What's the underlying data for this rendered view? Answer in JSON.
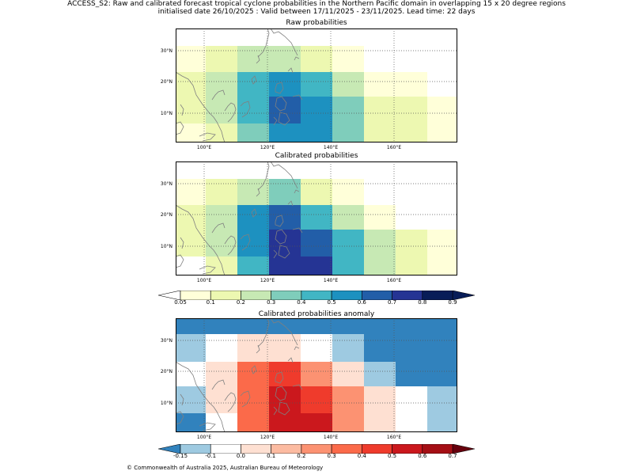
{
  "title": {
    "line1": "ACCESS_S2: Raw and calibrated forecast tropical cyclone probabilities in the Northern Pacific domain in overlapping 15 x 20 degree regions",
    "line2": "initialised date 26/10/2025 :  Valid between 17/11/2025 - 23/11/2025. Lead time: 22 days"
  },
  "panels": {
    "raw": {
      "title": "Raw probabilities"
    },
    "calibrated": {
      "title": "Calibrated probabilities"
    },
    "anomaly": {
      "title": "Calibrated probabilities anomaly"
    }
  },
  "axes": {
    "lon_ticks": [
      "100°E",
      "120°E",
      "140°E",
      "160°E"
    ],
    "lat_ticks": [
      "30°N",
      "20°N",
      "10°N"
    ]
  },
  "colorbars": {
    "probability": {
      "ticks": [
        "0.05",
        "0.1",
        "0.2",
        "0.3",
        "0.4",
        "0.5",
        "0.6",
        "0.7",
        "0.8",
        "0.9"
      ],
      "colors": [
        "#ffffd9",
        "#edf8b1",
        "#c7e9b4",
        "#7fcdbb",
        "#41b6c4",
        "#1d91c0",
        "#225ea8",
        "#253494",
        "#081d58"
      ],
      "under_color": "#ffffff",
      "over_color": "#081d58"
    },
    "anomaly": {
      "ticks": [
        "-0.15",
        "-0.1",
        "0.0",
        "0.1",
        "0.2",
        "0.3",
        "0.4",
        "0.5",
        "0.6",
        "0.7"
      ],
      "colors": [
        "#9ecae1",
        "#ffffff",
        "#fee0d2",
        "#fcbba1",
        "#fc9272",
        "#fb6a4a",
        "#ef3b2c",
        "#cb181d",
        "#a50f15"
      ],
      "under_color": "#3182bd",
      "over_color": "#67000d"
    }
  },
  "map_data": {
    "raw": [
      [
        "#ffffd9",
        "#edf8b1",
        "#c7e9b4",
        "#c7e9b4",
        "#edf8b1",
        "#ffffd9",
        "#ffffff",
        "#ffffff",
        "#ffffff"
      ],
      [
        "#edf8b1",
        "#c7e9b4",
        "#41b6c4",
        "#1d91c0",
        "#41b6c4",
        "#c7e9b4",
        "#ffffd9",
        "#ffffd9",
        "#ffffff"
      ],
      [
        "#edf8b1",
        "#c7e9b4",
        "#41b6c4",
        "#225ea8",
        "#1d91c0",
        "#7fcdbb",
        "#edf8b1",
        "#edf8b1",
        "#ffffd9"
      ],
      [
        "#ffffd9",
        "#edf8b1",
        "#7fcdbb",
        "#1d91c0",
        "#1d91c0",
        "#7fcdbb",
        "#edf8b1",
        "#edf8b1",
        "#ffffd9"
      ]
    ],
    "calibrated": [
      [
        "#ffffd9",
        "#edf8b1",
        "#c7e9b4",
        "#7fcdbb",
        "#edf8b1",
        "#ffffd9",
        "#ffffff",
        "#ffffff",
        "#ffffff"
      ],
      [
        "#edf8b1",
        "#c7e9b4",
        "#1d91c0",
        "#225ea8",
        "#41b6c4",
        "#c7e9b4",
        "#ffffd9",
        "#ffffff",
        "#ffffff"
      ],
      [
        "#edf8b1",
        "#c7e9b4",
        "#1d91c0",
        "#253494",
        "#225ea8",
        "#41b6c4",
        "#c7e9b4",
        "#edf8b1",
        "#ffffd9"
      ],
      [
        "#ffffff",
        "#edf8b1",
        "#41b6c4",
        "#253494",
        "#253494",
        "#41b6c4",
        "#c7e9b4",
        "#edf8b1",
        "#ffffd9"
      ]
    ],
    "anomaly": [
      [
        "#3182bd",
        "#3182bd",
        "#3182bd",
        "#3182bd",
        "#3182bd",
        "#3182bd",
        "#3182bd",
        "#3182bd",
        "#3182bd"
      ],
      [
        "#9ecae1",
        "#ffffff",
        "#fee0d2",
        "#fee0d2",
        "#ffffff",
        "#9ecae1",
        "#3182bd",
        "#3182bd",
        "#3182bd"
      ],
      [
        "#ffffff",
        "#fee0d2",
        "#fb6a4a",
        "#ef3b2c",
        "#fc9272",
        "#fee0d2",
        "#9ecae1",
        "#3182bd",
        "#3182bd"
      ],
      [
        "#9ecae1",
        "#fee0d2",
        "#fb6a4a",
        "#cb181d",
        "#ef3b2c",
        "#fc9272",
        "#fee0d2",
        "#ffffff",
        "#9ecae1"
      ],
      [
        "#3182bd",
        "#ffffff",
        "#fb6a4a",
        "#cb181d",
        "#cb181d",
        "#fc9272",
        "#fee0d2",
        "#ffffff",
        "#9ecae1"
      ]
    ]
  },
  "credit": "© Commonwealth of Australia 2025, Australian Bureau of Meteorology"
}
